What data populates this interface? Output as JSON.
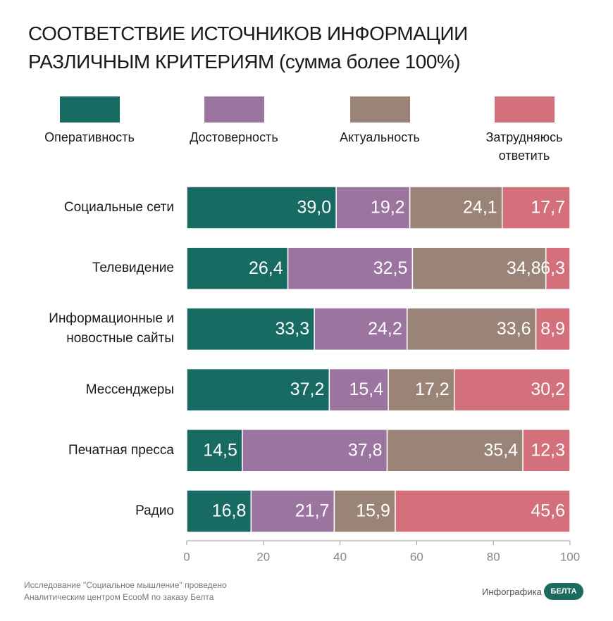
{
  "chart_data": {
    "type": "stacked-bar-horizontal",
    "title": "СООТВЕТСТВИЕ ИСТОЧНИКОВ ИНФОРМАЦИИ РАЗЛИЧНЫМ КРИТЕРИЯМ (сумма более 100%)",
    "categories": [
      "Социальные сети",
      "Телевидение",
      "Информационные и новостные сайты",
      "Мессенджеры",
      "Печатная пресса",
      "Радио"
    ],
    "series": [
      {
        "name": "Оперативность",
        "color": "#176b63",
        "values": [
          39.0,
          26.4,
          33.3,
          37.2,
          14.5,
          16.8
        ],
        "value_labels": [
          "39,0",
          "26,4",
          "33,3",
          "37,2",
          "14,5",
          "16,8"
        ]
      },
      {
        "name": "Достоверность",
        "color": "#9b74a0",
        "values": [
          19.2,
          32.5,
          24.2,
          15.4,
          37.8,
          21.7
        ],
        "value_labels": [
          "19,2",
          "32,5",
          "24,2",
          "15,4",
          "37,8",
          "21,7"
        ]
      },
      {
        "name": "Актуальность",
        "color": "#9a8478",
        "values": [
          24.1,
          34.8,
          33.6,
          17.2,
          35.4,
          15.9
        ],
        "value_labels": [
          "24,1",
          "34,8",
          "33,6",
          "17,2",
          "35,4",
          "15,9"
        ]
      },
      {
        "name": "Затрудняюсь ответить",
        "color": "#d4707b",
        "values": [
          17.7,
          6.3,
          8.9,
          30.2,
          12.3,
          45.6
        ],
        "value_labels": [
          "17,7",
          "6,3",
          "8,9",
          "30,2",
          "12,3",
          "45,6"
        ]
      }
    ],
    "xlim": [
      0,
      100
    ],
    "xticks": [
      0,
      20,
      40,
      60,
      80,
      100
    ],
    "source": "Исследование \"Социальное мышление\" проведено Аналитическим центром EcooM по заказу Белта",
    "credit": "Инфографика",
    "logo": "БЕЛТА"
  }
}
